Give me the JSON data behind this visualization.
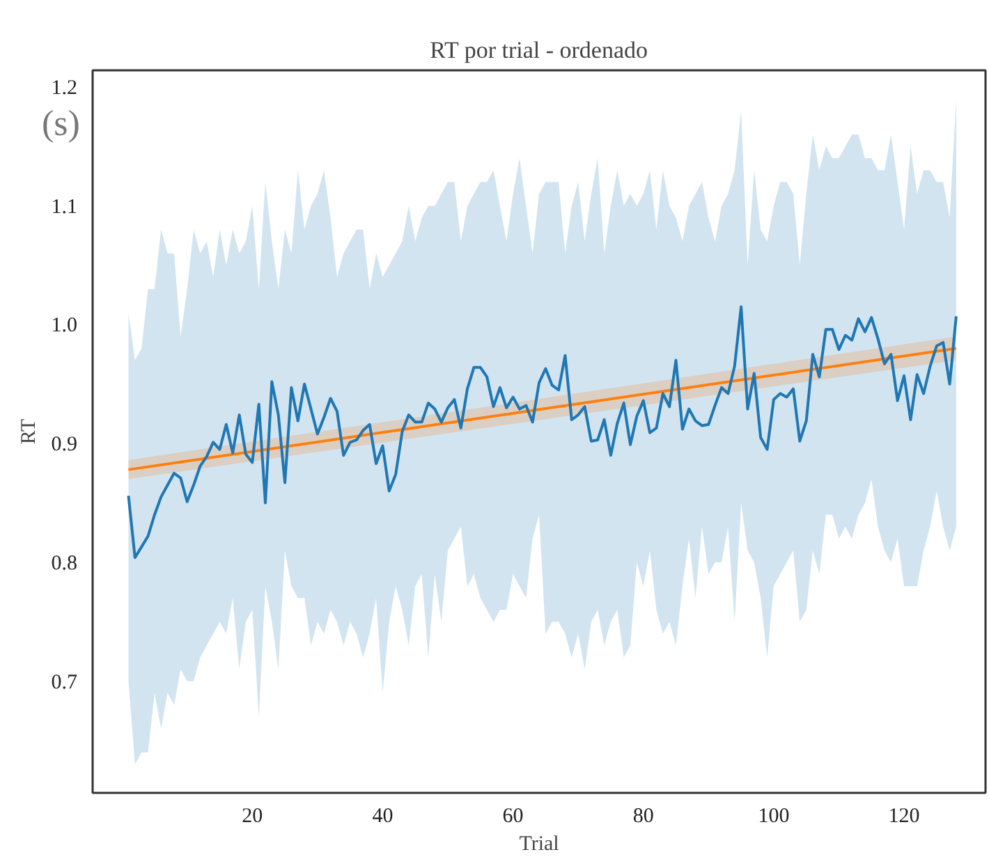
{
  "chart_data": {
    "type": "line",
    "title": "RT por trial - ordenado",
    "xlabel": "Trial",
    "ylabel": "RT",
    "annotations": [
      "(s)"
    ],
    "x": [
      1,
      2,
      3,
      4,
      5,
      6,
      7,
      8,
      9,
      10,
      11,
      12,
      13,
      14,
      15,
      16,
      17,
      18,
      19,
      20,
      21,
      22,
      23,
      24,
      25,
      26,
      27,
      28,
      29,
      30,
      31,
      32,
      33,
      34,
      35,
      36,
      37,
      38,
      39,
      40,
      41,
      42,
      43,
      44,
      45,
      46,
      47,
      48,
      49,
      50,
      51,
      52,
      53,
      54,
      55,
      56,
      57,
      58,
      59,
      60,
      61,
      62,
      63,
      64,
      65,
      66,
      67,
      68,
      69,
      70,
      71,
      72,
      73,
      74,
      75,
      76,
      77,
      78,
      79,
      80,
      81,
      82,
      83,
      84,
      85,
      86,
      87,
      88,
      89,
      90,
      91,
      92,
      93,
      94,
      95,
      96,
      97,
      98,
      99,
      100,
      101,
      102,
      103,
      104,
      105,
      106,
      107,
      108,
      109,
      110,
      111,
      112,
      113,
      114,
      115,
      116,
      117,
      118,
      119,
      120,
      121,
      122,
      123,
      124,
      125,
      126,
      127,
      128
    ],
    "series": [
      {
        "color": "#1f77b4",
        "values": [
          0.856,
          0.804,
          0.813,
          0.822,
          0.84,
          0.855,
          0.865,
          0.875,
          0.871,
          0.851,
          0.865,
          0.881,
          0.889,
          0.901,
          0.895,
          0.916,
          0.892,
          0.924,
          0.891,
          0.884,
          0.933,
          0.85,
          0.952,
          0.924,
          0.867,
          0.947,
          0.919,
          0.95,
          0.929,
          0.908,
          0.922,
          0.938,
          0.927,
          0.89,
          0.901,
          0.903,
          0.911,
          0.916,
          0.883,
          0.898,
          0.86,
          0.874,
          0.91,
          0.924,
          0.918,
          0.918,
          0.934,
          0.929,
          0.918,
          0.93,
          0.937,
          0.913,
          0.946,
          0.964,
          0.964,
          0.956,
          0.931,
          0.947,
          0.93,
          0.939,
          0.929,
          0.932,
          0.918,
          0.951,
          0.963,
          0.949,
          0.945,
          0.974,
          0.92,
          0.924,
          0.931,
          0.902,
          0.903,
          0.92,
          0.89,
          0.917,
          0.934,
          0.899,
          0.923,
          0.936,
          0.909,
          0.913,
          0.942,
          0.931,
          0.97,
          0.912,
          0.929,
          0.919,
          0.915,
          0.916,
          0.932,
          0.947,
          0.942,
          0.965,
          1.015,
          0.929,
          0.959,
          0.905,
          0.895,
          0.937,
          0.942,
          0.939,
          0.946,
          0.902,
          0.919,
          0.975,
          0.956,
          0.996,
          0.996,
          0.979,
          0.991,
          0.987,
          1.005,
          0.994,
          1.006,
          0.988,
          0.967,
          0.975,
          0.936,
          0.957,
          0.92,
          0.958,
          0.942,
          0.965,
          0.982,
          0.985,
          0.95,
          1.007
        ],
        "lower": [
          0.7,
          0.63,
          0.64,
          0.64,
          0.69,
          0.66,
          0.69,
          0.68,
          0.71,
          0.7,
          0.7,
          0.72,
          0.73,
          0.74,
          0.75,
          0.74,
          0.77,
          0.71,
          0.75,
          0.76,
          0.67,
          0.78,
          0.75,
          0.71,
          0.81,
          0.78,
          0.77,
          0.77,
          0.73,
          0.75,
          0.74,
          0.76,
          0.75,
          0.73,
          0.75,
          0.74,
          0.72,
          0.74,
          0.77,
          0.69,
          0.75,
          0.78,
          0.76,
          0.73,
          0.78,
          0.79,
          0.72,
          0.79,
          0.75,
          0.81,
          0.82,
          0.83,
          0.78,
          0.79,
          0.77,
          0.76,
          0.75,
          0.76,
          0.76,
          0.79,
          0.78,
          0.77,
          0.82,
          0.84,
          0.74,
          0.75,
          0.75,
          0.74,
          0.72,
          0.74,
          0.71,
          0.75,
          0.76,
          0.73,
          0.75,
          0.76,
          0.72,
          0.73,
          0.8,
          0.78,
          0.81,
          0.76,
          0.74,
          0.75,
          0.73,
          0.78,
          0.82,
          0.77,
          0.83,
          0.79,
          0.8,
          0.8,
          0.83,
          0.75,
          0.85,
          0.81,
          0.8,
          0.77,
          0.72,
          0.78,
          0.79,
          0.8,
          0.81,
          0.75,
          0.76,
          0.81,
          0.79,
          0.84,
          0.84,
          0.82,
          0.83,
          0.82,
          0.84,
          0.85,
          0.87,
          0.83,
          0.81,
          0.8,
          0.82,
          0.78,
          0.78,
          0.78,
          0.81,
          0.83,
          0.86,
          0.83,
          0.81,
          0.83
        ],
        "upper": [
          1.01,
          0.97,
          0.98,
          1.03,
          1.03,
          1.08,
          1.06,
          1.06,
          0.99,
          1.03,
          1.08,
          1.06,
          1.07,
          1.04,
          1.08,
          1.05,
          1.08,
          1.06,
          1.07,
          1.1,
          1.03,
          1.12,
          1.07,
          1.03,
          1.08,
          1.06,
          1.13,
          1.08,
          1.1,
          1.11,
          1.13,
          1.09,
          1.04,
          1.06,
          1.07,
          1.08,
          1.08,
          1.03,
          1.06,
          1.04,
          1.05,
          1.06,
          1.07,
          1.1,
          1.07,
          1.09,
          1.1,
          1.1,
          1.11,
          1.12,
          1.12,
          1.07,
          1.1,
          1.11,
          1.12,
          1.12,
          1.13,
          1.1,
          1.07,
          1.11,
          1.14,
          1.1,
          1.06,
          1.11,
          1.12,
          1.12,
          1.12,
          1.06,
          1.1,
          1.12,
          1.07,
          1.11,
          1.14,
          1.06,
          1.1,
          1.13,
          1.1,
          1.11,
          1.1,
          1.11,
          1.13,
          1.08,
          1.13,
          1.1,
          1.09,
          1.07,
          1.1,
          1.11,
          1.12,
          1.09,
          1.07,
          1.1,
          1.11,
          1.13,
          1.18,
          1.05,
          1.13,
          1.08,
          1.07,
          1.1,
          1.12,
          1.12,
          1.11,
          1.05,
          1.11,
          1.16,
          1.13,
          1.15,
          1.14,
          1.14,
          1.15,
          1.16,
          1.16,
          1.14,
          1.14,
          1.13,
          1.13,
          1.16,
          1.12,
          1.08,
          1.15,
          1.11,
          1.13,
          1.13,
          1.12,
          1.12,
          1.09,
          1.19
        ]
      },
      {
        "color": "#ff7f0e",
        "x": [
          1,
          128
        ],
        "values": [
          0.878,
          0.98
        ],
        "lower": [
          0.87,
          0.97
        ],
        "upper": [
          0.886,
          0.99
        ]
      }
    ],
    "xlim": [
      -4.5,
      132.5
    ],
    "ylim": [
      0.606,
      1.214
    ],
    "xticks": [
      20,
      40,
      60,
      80,
      100,
      120
    ],
    "yticks": [
      0.7,
      0.8,
      0.9,
      {
        "value": 1.0,
        "label": "1.0"
      },
      1.1,
      1.2
    ],
    "grid": false,
    "marker": "none",
    "line_style": "solid"
  }
}
